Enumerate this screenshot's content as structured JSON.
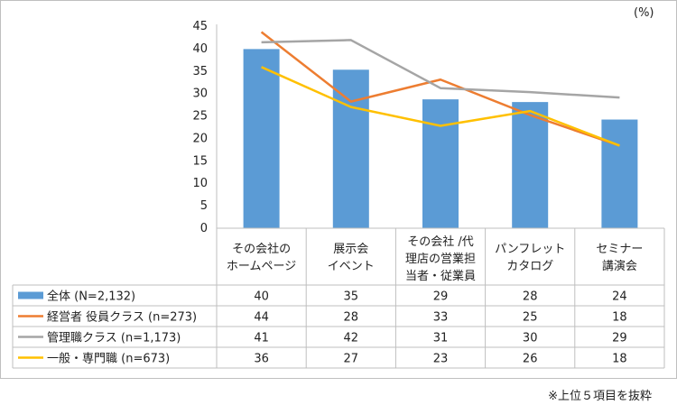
{
  "chart_data": {
    "type": "bar",
    "title": "",
    "xlabel": "",
    "ylabel": "",
    "unit_label": "(%)",
    "ylim": [
      0,
      45
    ],
    "y_ticks": [
      "0",
      "5",
      "10",
      "15",
      "20",
      "25",
      "30",
      "35",
      "40",
      "45"
    ],
    "categories": [
      [
        "その会社の",
        "ホームページ"
      ],
      [
        "展示会",
        "イベント"
      ],
      [
        "その会社 /代",
        "理店の営業担",
        "当者・従業員"
      ],
      [
        "パンフレット",
        "カタログ"
      ],
      [
        "セミナー",
        "講演会"
      ]
    ],
    "series": [
      {
        "name": "全体 (N=2,132)",
        "type": "bar",
        "color": "#5b9bd5",
        "values": [
          40,
          35,
          29,
          28,
          24
        ],
        "plot_values": [
          39.9,
          35.3,
          28.7,
          28.1,
          24.2
        ]
      },
      {
        "name": "経営者 役員クラス (n=273)",
        "type": "line",
        "color": "#ed7d31",
        "values": [
          44,
          28,
          33,
          25,
          18
        ],
        "plot_values": [
          43.7,
          28.2,
          33.1,
          25.2,
          18.4
        ]
      },
      {
        "name": "管理職クラス (n=1,173)",
        "type": "line",
        "color": "#a5a5a5",
        "values": [
          41,
          42,
          31,
          30,
          29
        ],
        "plot_values": [
          41.4,
          41.9,
          31.2,
          30.3,
          29.1
        ]
      },
      {
        "name": "一般・専門職 (n=673)",
        "type": "line",
        "color": "#ffc000",
        "values": [
          36,
          27,
          23,
          26,
          18
        ],
        "plot_values": [
          35.9,
          27.0,
          22.8,
          26.1,
          18.4
        ]
      }
    ],
    "table_labels": [
      "全体 (N=2,132)",
      "経営者 役員クラス (n=273)",
      "管理職クラス (n=1,173)",
      "一般・専門職 (n=673)"
    ],
    "grid": false,
    "legend": "table-left",
    "note": "※上位５項目を抜粋"
  }
}
